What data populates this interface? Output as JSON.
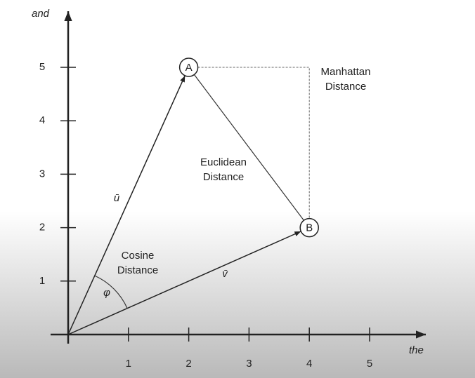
{
  "y_axis": {
    "label": "and",
    "ticks": [
      1,
      2,
      3,
      4,
      5
    ],
    "lim": [
      0,
      6
    ]
  },
  "x_axis": {
    "label": "the",
    "ticks": [
      1,
      2,
      3,
      4,
      5
    ],
    "lim": [
      0,
      6
    ]
  },
  "points": [
    {
      "label": "A",
      "x": 2,
      "y": 5
    },
    {
      "label": "B",
      "x": 4,
      "y": 2
    }
  ],
  "vectors": [
    "ū",
    "v̄"
  ],
  "angle_label": "φ",
  "annotations": {
    "cosine": [
      "Cosine",
      "Distance"
    ],
    "euclidean": [
      "Euclidean",
      "Distance"
    ],
    "manhattan": [
      "Manhattan",
      "Distance"
    ]
  }
}
